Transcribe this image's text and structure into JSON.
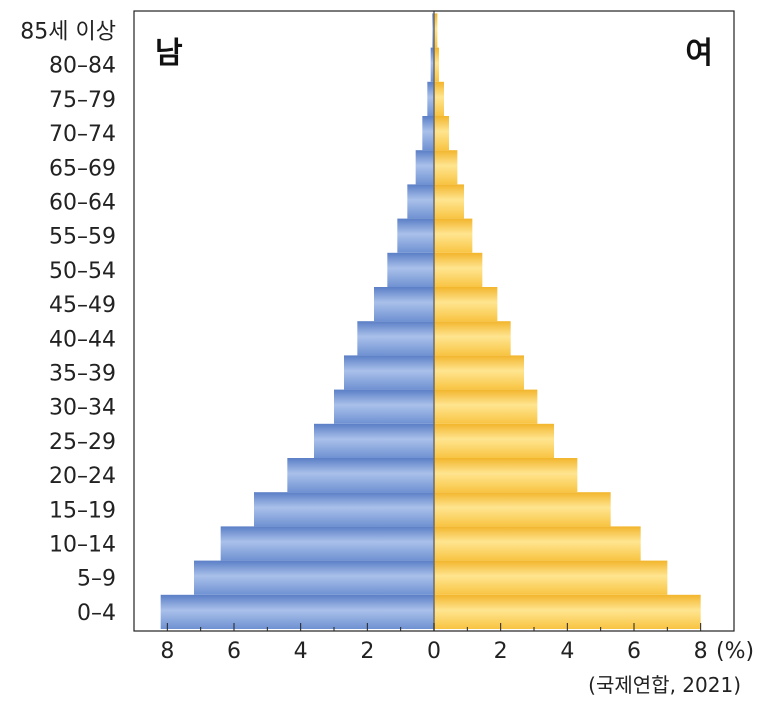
{
  "chart_data": {
    "type": "bar",
    "orientation": "horizontal",
    "layout": "population-pyramid",
    "title": "",
    "xlabel": "",
    "ylabel": "",
    "unit": "(%)",
    "source": "(국제연합, 2021)",
    "categories": [
      "0–4",
      "5–9",
      "10–14",
      "15–19",
      "20–24",
      "25–29",
      "30–34",
      "35–39",
      "40–44",
      "45–49",
      "50–54",
      "55–59",
      "60–64",
      "65–69",
      "70–74",
      "75–79",
      "80–84",
      "85세 이상"
    ],
    "series": [
      {
        "name": "남",
        "side": "left",
        "values": [
          8.2,
          7.2,
          6.4,
          5.4,
          4.4,
          3.6,
          3.0,
          2.7,
          2.3,
          1.8,
          1.4,
          1.1,
          0.8,
          0.55,
          0.35,
          0.2,
          0.1,
          0.05
        ]
      },
      {
        "name": "여",
        "side": "right",
        "values": [
          8.0,
          7.0,
          6.2,
          5.3,
          4.3,
          3.6,
          3.1,
          2.7,
          2.3,
          1.9,
          1.45,
          1.15,
          0.9,
          0.7,
          0.45,
          0.3,
          0.15,
          0.1
        ]
      }
    ],
    "xlim": [
      -9,
      9
    ],
    "xticks": [
      -8,
      -6,
      -4,
      -2,
      0,
      2,
      4,
      6,
      8
    ],
    "xtick_labels": [
      "8",
      "6",
      "4",
      "2",
      "0",
      "2",
      "4",
      "6",
      "8"
    ],
    "grid": false,
    "colors": {
      "male": "#7f9fd8",
      "male_dark": "#4f74c0",
      "female": "#ffd45a",
      "female_dark": "#f3b52a",
      "axis": "#222222"
    }
  }
}
